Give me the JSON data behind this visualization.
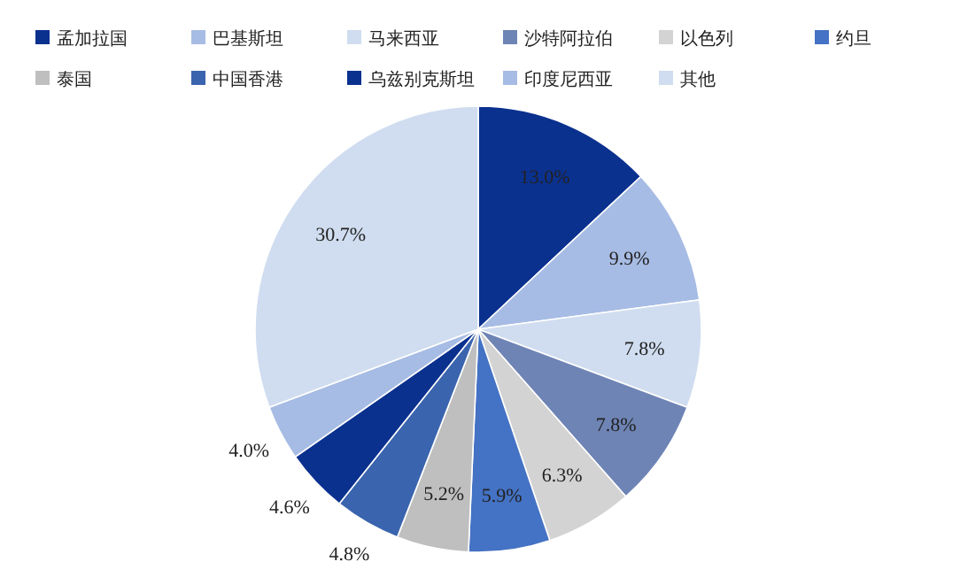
{
  "chart_data": {
    "type": "pie",
    "legend": "top",
    "categories": [
      "孟加拉国",
      "巴基斯坦",
      "马来西亚",
      "沙特阿拉伯",
      "以色列",
      "约旦",
      "泰国",
      "中国香港",
      "乌兹别克斯坦",
      "印度尼西亚",
      "其他"
    ],
    "values": [
      13.0,
      9.9,
      7.8,
      7.8,
      6.3,
      5.9,
      5.2,
      4.8,
      4.6,
      4.0,
      30.7
    ],
    "value_labels": [
      "13.0%",
      "9.9%",
      "7.8%",
      "7.8%",
      "6.3%",
      "5.9%",
      "5.2%",
      "4.8%",
      "4.6%",
      "4.0%",
      "30.7%"
    ],
    "colors": [
      "#0b318f",
      "#a7bce4",
      "#d0ddf0",
      "#6e84b5",
      "#d3d3d3",
      "#4472c4",
      "#bfbfbf",
      "#3a64ae",
      "#0b318f",
      "#a7bce4",
      "#d0ddf0"
    ]
  }
}
